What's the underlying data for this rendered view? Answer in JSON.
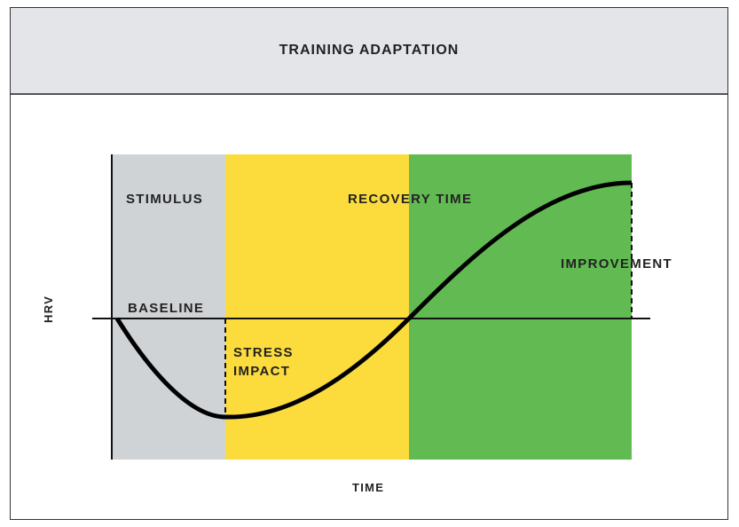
{
  "title": "TRAINING ADAPTATION",
  "axes": {
    "y_label": "HRV",
    "x_label": "TIME"
  },
  "zones": [
    {
      "label": "STIMULUS",
      "color": "#d0d3d6"
    },
    {
      "label": "RECOVERY TIME",
      "color": "#fcdc3d"
    },
    {
      "label": "",
      "color": "#62bb52"
    }
  ],
  "annotations": {
    "baseline": "BASELINE",
    "stress_impact_line1": "STRESS",
    "stress_impact_line2": "IMPACT",
    "improvement": "IMPROVEMENT"
  }
}
